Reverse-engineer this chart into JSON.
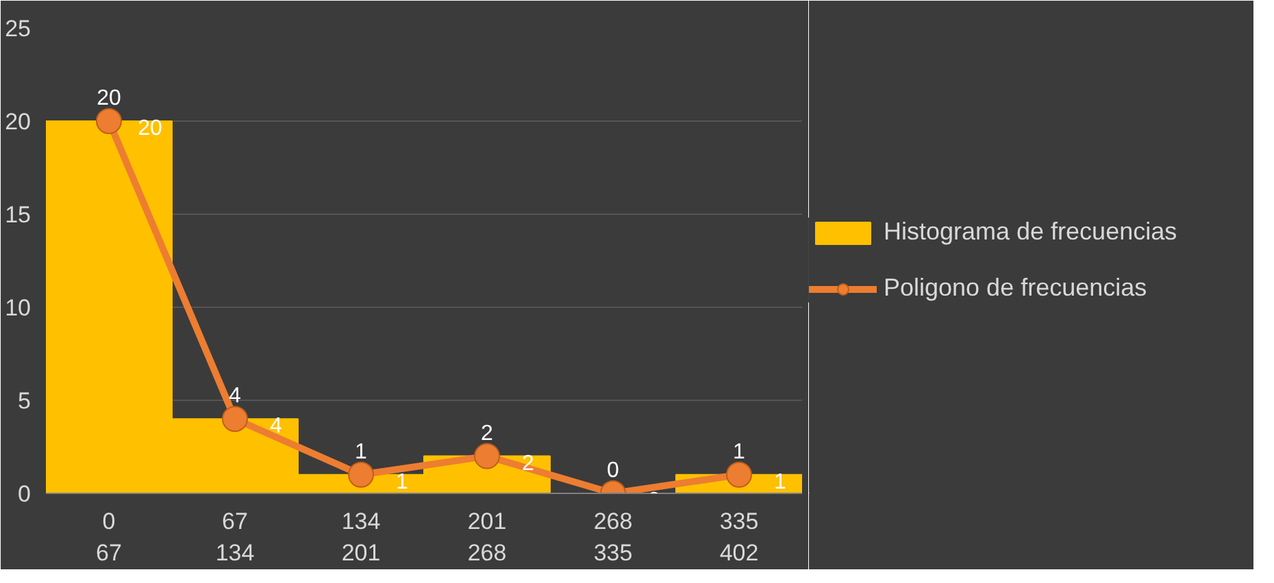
{
  "chart_data": {
    "type": "bar",
    "categories": [
      "0\n67",
      "67\n134",
      "134\n201",
      "201\n268",
      "268\n335",
      "335\n402"
    ],
    "series": [
      {
        "name": "Histograma de frecuencias",
        "color": "#ffc000",
        "values": [
          20,
          4,
          1,
          2,
          0,
          1
        ]
      },
      {
        "name": "Poligono de frecuencias",
        "type": "line",
        "color": "#ed7d31",
        "marker": "circle",
        "values": [
          20,
          4,
          1,
          2,
          0,
          1
        ]
      }
    ],
    "ylim": [
      0,
      25
    ],
    "yticks": [
      0,
      5,
      10,
      15,
      20,
      25
    ],
    "grid": "y",
    "legend": "right",
    "data_labels": true
  }
}
